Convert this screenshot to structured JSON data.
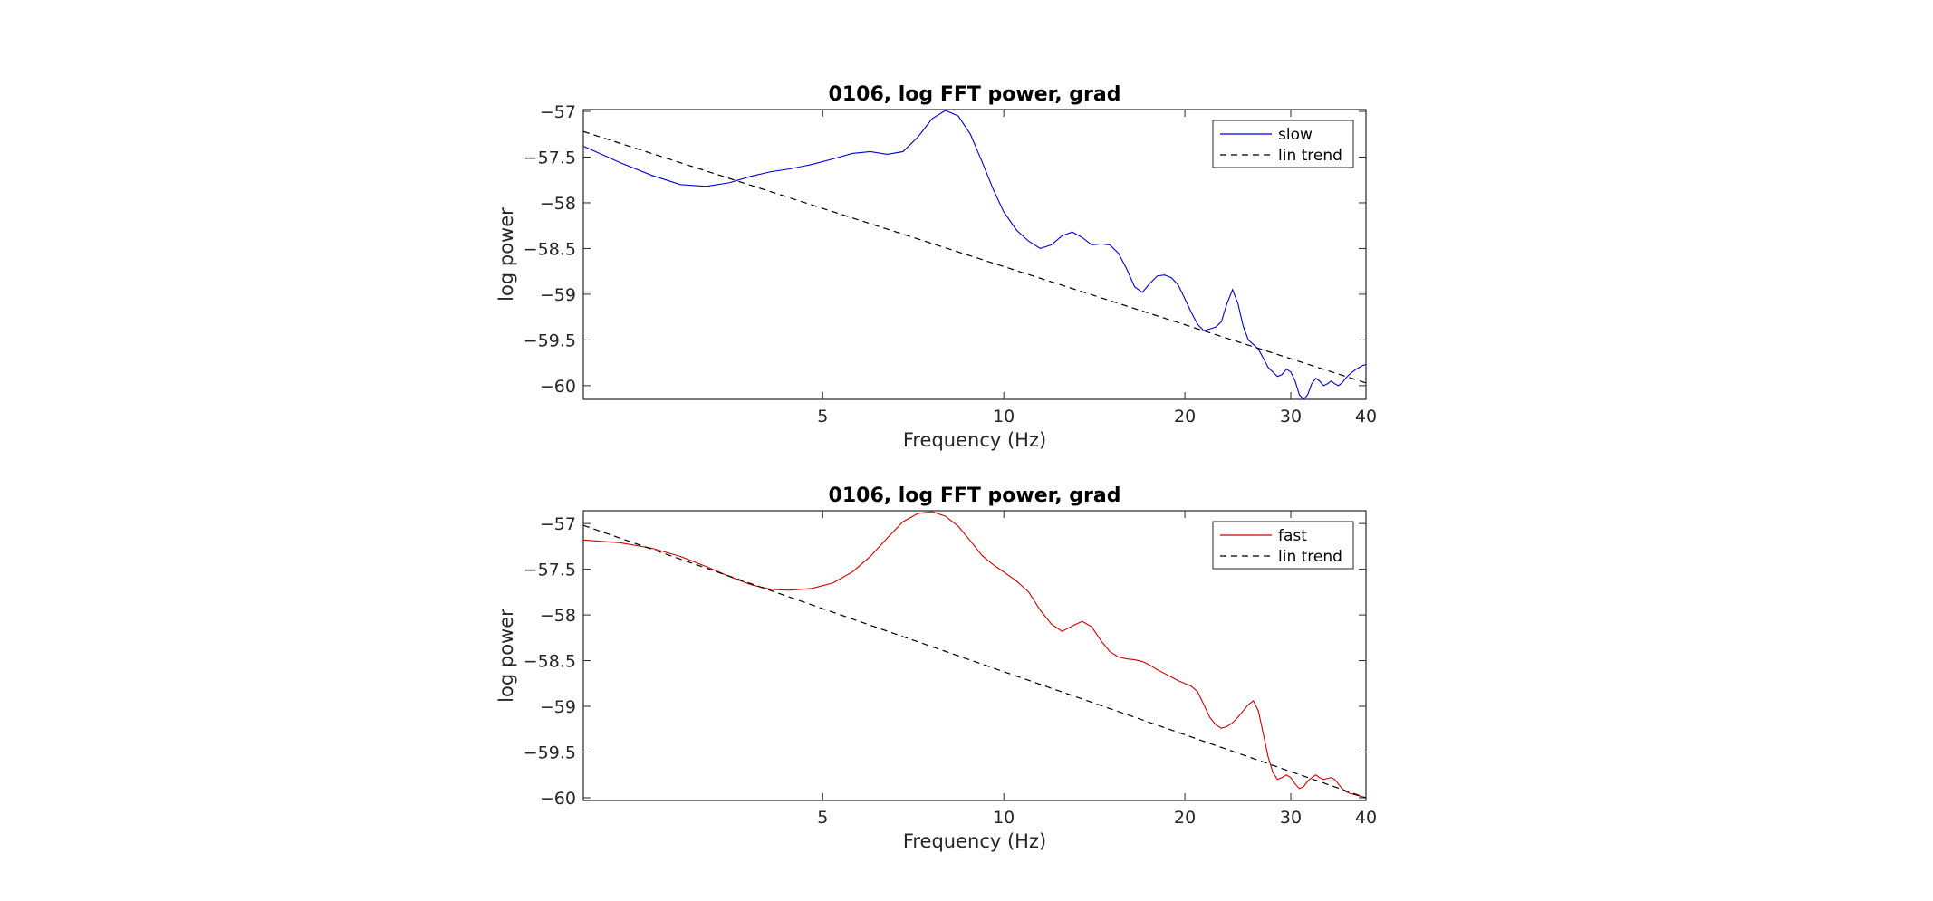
{
  "colors": {
    "slow": "#0000cc",
    "fast": "#cc0000",
    "trend": "#000000"
  },
  "chart_data": [
    {
      "type": "line",
      "title": "0106, log FFT power, grad",
      "xlabel": "Frequency (Hz)",
      "ylabel": "log power",
      "xscale": "log",
      "xlim": [
        2,
        40
      ],
      "ylim": [
        -60.15,
        -56.98
      ],
      "xticks": [
        5,
        10,
        20,
        30,
        40
      ],
      "yticks": [
        -57,
        -57.5,
        -58,
        -58.5,
        -59,
        -59.5,
        -60
      ],
      "legend": "top-right",
      "series": [
        {
          "name": "slow",
          "style": "solid",
          "color": "#0000cc",
          "x": [
            2.0,
            2.3,
            2.6,
            2.9,
            3.2,
            3.5,
            3.8,
            4.1,
            4.4,
            4.8,
            5.2,
            5.6,
            6.0,
            6.4,
            6.8,
            7.2,
            7.6,
            8.0,
            8.4,
            8.8,
            9.2,
            9.6,
            10.0,
            10.5,
            11.0,
            11.5,
            12.0,
            12.5,
            13.0,
            13.5,
            14.0,
            14.5,
            15.0,
            15.5,
            16.0,
            16.5,
            17.0,
            17.5,
            18.0,
            18.5,
            19.0,
            19.5,
            20.0,
            20.5,
            21.0,
            21.5,
            22.0,
            22.5,
            23.0,
            23.5,
            24.0,
            24.5,
            25.0,
            25.5,
            26.0,
            26.5,
            27.0,
            27.5,
            28.0,
            28.5,
            29.0,
            29.5,
            30.0,
            30.5,
            31.0,
            31.5,
            32.0,
            32.5,
            33.0,
            33.5,
            34.0,
            34.5,
            35.0,
            35.5,
            36.0,
            36.5,
            37.0,
            37.5,
            38.0,
            38.5,
            39.0,
            39.5,
            40.0
          ],
          "y": [
            -57.38,
            -57.56,
            -57.7,
            -57.8,
            -57.82,
            -57.78,
            -57.71,
            -57.66,
            -57.63,
            -57.58,
            -57.52,
            -57.46,
            -57.44,
            -57.47,
            -57.44,
            -57.28,
            -57.08,
            -56.99,
            -57.05,
            -57.25,
            -57.55,
            -57.85,
            -58.1,
            -58.3,
            -58.42,
            -58.5,
            -58.46,
            -58.36,
            -58.32,
            -58.38,
            -58.46,
            -58.45,
            -58.46,
            -58.55,
            -58.72,
            -58.92,
            -58.98,
            -58.88,
            -58.8,
            -58.79,
            -58.82,
            -58.9,
            -59.05,
            -59.2,
            -59.33,
            -59.4,
            -59.38,
            -59.36,
            -59.3,
            -59.1,
            -58.95,
            -59.1,
            -59.35,
            -59.5,
            -59.55,
            -59.6,
            -59.7,
            -59.8,
            -59.85,
            -59.9,
            -59.88,
            -59.82,
            -59.85,
            -59.95,
            -60.1,
            -60.15,
            -60.1,
            -59.98,
            -59.92,
            -59.95,
            -60.0,
            -59.98,
            -59.95,
            -59.98,
            -60.0,
            -59.97,
            -59.92,
            -59.88,
            -59.85,
            -59.82,
            -59.8,
            -59.78,
            -59.77
          ]
        },
        {
          "name": "lin trend",
          "style": "dashed",
          "color": "#000000",
          "x": [
            2,
            40
          ],
          "y": [
            -57.22,
            -59.97
          ]
        }
      ]
    },
    {
      "type": "line",
      "title": "0106, log FFT power, grad",
      "xlabel": "Frequency (Hz)",
      "ylabel": "log power",
      "xscale": "log",
      "xlim": [
        2,
        40
      ],
      "ylim": [
        -60.03,
        -56.86
      ],
      "xticks": [
        5,
        10,
        20,
        30,
        40
      ],
      "yticks": [
        -57,
        -57.5,
        -58,
        -58.5,
        -59,
        -59.5,
        -60
      ],
      "legend": "top-right",
      "series": [
        {
          "name": "fast",
          "style": "solid",
          "color": "#cc0000",
          "x": [
            2.0,
            2.3,
            2.6,
            2.9,
            3.2,
            3.5,
            3.8,
            4.1,
            4.4,
            4.8,
            5.2,
            5.6,
            6.0,
            6.4,
            6.8,
            7.2,
            7.6,
            8.0,
            8.4,
            8.8,
            9.2,
            9.6,
            10.0,
            10.5,
            11.0,
            11.5,
            12.0,
            12.5,
            13.0,
            13.5,
            14.0,
            14.5,
            15.0,
            15.5,
            16.0,
            16.5,
            17.0,
            17.5,
            18.0,
            18.5,
            19.0,
            19.5,
            20.0,
            20.5,
            21.0,
            21.5,
            22.0,
            22.5,
            23.0,
            23.5,
            24.0,
            24.5,
            25.0,
            25.5,
            26.0,
            26.5,
            27.0,
            27.5,
            28.0,
            28.5,
            29.0,
            29.5,
            30.0,
            30.5,
            31.0,
            31.5,
            32.0,
            32.5,
            33.0,
            33.5,
            34.0,
            34.5,
            35.0,
            35.5,
            36.0,
            36.5,
            37.0,
            37.5,
            38.0,
            38.5,
            39.0,
            39.5,
            40.0
          ],
          "y": [
            -57.18,
            -57.21,
            -57.27,
            -57.36,
            -57.47,
            -57.58,
            -57.67,
            -57.72,
            -57.73,
            -57.71,
            -57.65,
            -57.53,
            -57.36,
            -57.16,
            -56.98,
            -56.89,
            -56.87,
            -56.92,
            -57.03,
            -57.19,
            -57.35,
            -57.45,
            -57.53,
            -57.63,
            -57.75,
            -57.95,
            -58.1,
            -58.18,
            -58.12,
            -58.07,
            -58.13,
            -58.28,
            -58.4,
            -58.46,
            -58.48,
            -58.49,
            -58.51,
            -58.55,
            -58.6,
            -58.64,
            -58.68,
            -58.72,
            -58.75,
            -58.78,
            -58.84,
            -58.98,
            -59.12,
            -59.2,
            -59.24,
            -59.22,
            -59.18,
            -59.12,
            -59.05,
            -58.98,
            -58.94,
            -59.05,
            -59.3,
            -59.55,
            -59.72,
            -59.8,
            -59.78,
            -59.75,
            -59.78,
            -59.85,
            -59.9,
            -59.88,
            -59.82,
            -59.78,
            -59.75,
            -59.78,
            -59.8,
            -59.79,
            -59.78,
            -59.8,
            -59.85,
            -59.9,
            -59.93,
            -59.95,
            -59.96,
            -59.97,
            -59.98,
            -59.99,
            -60.0
          ]
        },
        {
          "name": "lin trend",
          "style": "dashed",
          "color": "#000000",
          "x": [
            2,
            40
          ],
          "y": [
            -57.02,
            -60.0
          ]
        }
      ]
    }
  ]
}
